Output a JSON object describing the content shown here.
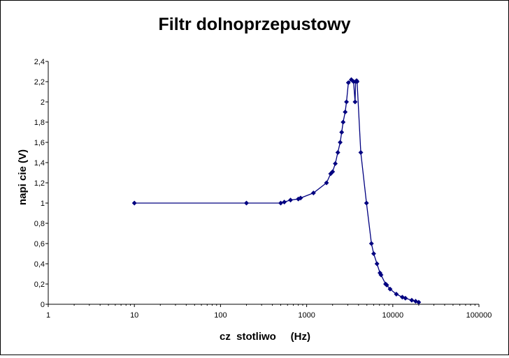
{
  "chart_data": {
    "type": "scatter",
    "title": "Filtr dolnoprzepustowy",
    "xlabel": "cz  stotliwo     (Hz)",
    "ylabel": "napi cie (V)",
    "x_scale": "log",
    "xlim": [
      1,
      100000
    ],
    "ylim": [
      0,
      2.4
    ],
    "x_ticks": [
      1,
      10,
      100,
      1000,
      10000,
      100000
    ],
    "x_tick_labels": [
      "1",
      "10",
      "100",
      "1000",
      "10000",
      "100000"
    ],
    "y_ticks": [
      0,
      0.2,
      0.4,
      0.6,
      0.8,
      1,
      1.2,
      1.4,
      1.6,
      1.8,
      2,
      2.2,
      2.4
    ],
    "y_tick_labels": [
      "0",
      "0,2",
      "0,4",
      "0,6",
      "0,8",
      "1",
      "1,2",
      "1,4",
      "1,6",
      "1,8",
      "2",
      "2,2",
      "2,4"
    ],
    "grid": false,
    "legend": "none",
    "series": [
      {
        "color": "#000080",
        "x": [
          10,
          200,
          500,
          550,
          650,
          800,
          850,
          1200,
          1700,
          1900,
          2000,
          2150,
          2300,
          2450,
          2550,
          2650,
          2800,
          2900,
          3050,
          3300,
          3500,
          3650,
          3700,
          3800,
          3850,
          4250,
          4950,
          5650,
          6000,
          6550,
          7100,
          7300,
          8250,
          8500,
          9300,
          11000,
          12900,
          14000,
          16600,
          18400,
          20000
        ],
        "y": [
          1,
          1,
          1,
          1.01,
          1.03,
          1.04,
          1.05,
          1.1,
          1.2,
          1.29,
          1.31,
          1.39,
          1.5,
          1.6,
          1.7,
          1.8,
          1.9,
          2.0,
          2.19,
          2.22,
          2.2,
          2.0,
          2.2,
          2.21,
          2.2,
          1.5,
          1.0,
          0.6,
          0.5,
          0.4,
          0.31,
          0.29,
          0.2,
          0.19,
          0.15,
          0.1,
          0.07,
          0.06,
          0.04,
          0.03,
          0.02
        ]
      }
    ]
  }
}
